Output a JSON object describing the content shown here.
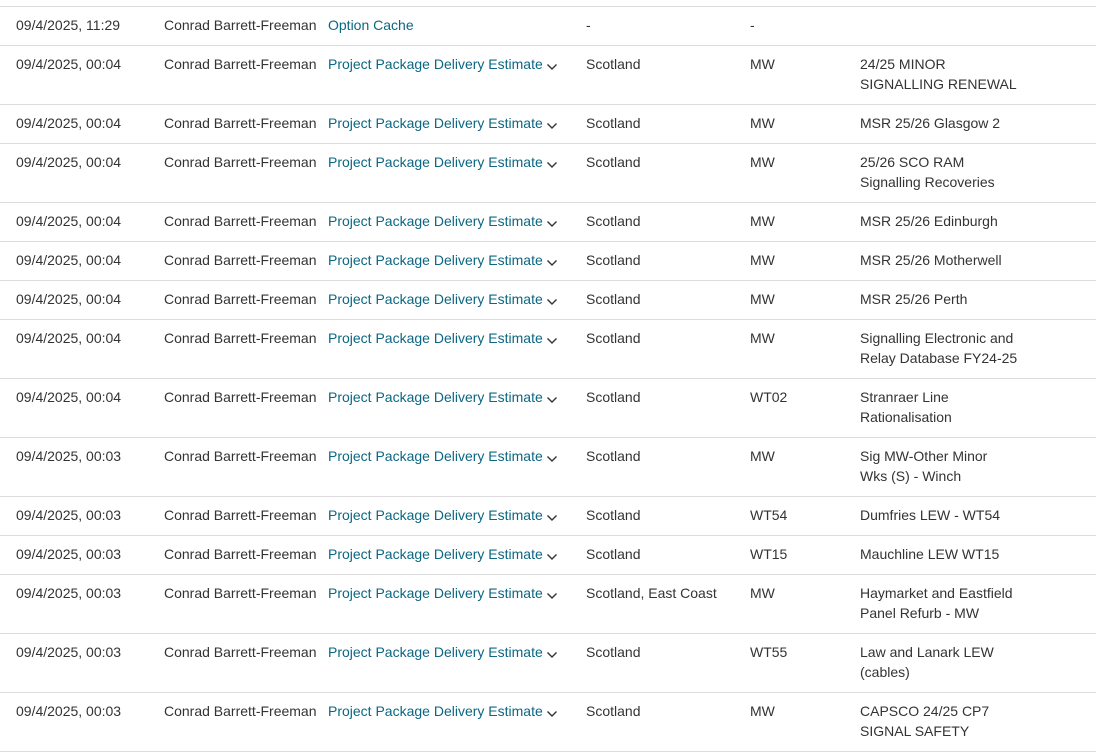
{
  "colors": {
    "link": "#0b6782",
    "text": "#333333",
    "border": "#dddddd"
  },
  "rows": [
    {
      "date": "09/4/2025, 11:29",
      "user": "Conrad Barrett-Freeman",
      "type": "Option Cache",
      "expandable": false,
      "region": "-",
      "code": "-",
      "project": ""
    },
    {
      "date": "09/4/2025, 00:04",
      "user": "Conrad Barrett-Freeman",
      "type": "Project Package Delivery Estimate",
      "expandable": true,
      "region": "Scotland",
      "code": "MW",
      "project": "24/25 MINOR SIGNALLING RENEWAL"
    },
    {
      "date": "09/4/2025, 00:04",
      "user": "Conrad Barrett-Freeman",
      "type": "Project Package Delivery Estimate",
      "expandable": true,
      "region": "Scotland",
      "code": "MW",
      "project": "MSR 25/26 Glasgow 2"
    },
    {
      "date": "09/4/2025, 00:04",
      "user": "Conrad Barrett-Freeman",
      "type": "Project Package Delivery Estimate",
      "expandable": true,
      "region": "Scotland",
      "code": "MW",
      "project": "25/26 SCO RAM Signalling Recoveries"
    },
    {
      "date": "09/4/2025, 00:04",
      "user": "Conrad Barrett-Freeman",
      "type": "Project Package Delivery Estimate",
      "expandable": true,
      "region": "Scotland",
      "code": "MW",
      "project": "MSR 25/26 Edinburgh"
    },
    {
      "date": "09/4/2025, 00:04",
      "user": "Conrad Barrett-Freeman",
      "type": "Project Package Delivery Estimate",
      "expandable": true,
      "region": "Scotland",
      "code": "MW",
      "project": "MSR 25/26 Motherwell"
    },
    {
      "date": "09/4/2025, 00:04",
      "user": "Conrad Barrett-Freeman",
      "type": "Project Package Delivery Estimate",
      "expandable": true,
      "region": "Scotland",
      "code": "MW",
      "project": "MSR 25/26 Perth"
    },
    {
      "date": "09/4/2025, 00:04",
      "user": "Conrad Barrett-Freeman",
      "type": "Project Package Delivery Estimate",
      "expandable": true,
      "region": "Scotland",
      "code": "MW",
      "project": "Signalling Electronic and Relay Database FY24-25"
    },
    {
      "date": "09/4/2025, 00:04",
      "user": "Conrad Barrett-Freeman",
      "type": "Project Package Delivery Estimate",
      "expandable": true,
      "region": "Scotland",
      "code": "WT02",
      "project": "Stranraer Line Rationalisation"
    },
    {
      "date": "09/4/2025, 00:03",
      "user": "Conrad Barrett-Freeman",
      "type": "Project Package Delivery Estimate",
      "expandable": true,
      "region": "Scotland",
      "code": "MW",
      "project": "Sig MW-Other Minor Wks (S) - Winch"
    },
    {
      "date": "09/4/2025, 00:03",
      "user": "Conrad Barrett-Freeman",
      "type": "Project Package Delivery Estimate",
      "expandable": true,
      "region": "Scotland",
      "code": "WT54",
      "project": "Dumfries LEW - WT54"
    },
    {
      "date": "09/4/2025, 00:03",
      "user": "Conrad Barrett-Freeman",
      "type": "Project Package Delivery Estimate",
      "expandable": true,
      "region": "Scotland",
      "code": "WT15",
      "project": "Mauchline LEW WT15"
    },
    {
      "date": "09/4/2025, 00:03",
      "user": "Conrad Barrett-Freeman",
      "type": "Project Package Delivery Estimate",
      "expandable": true,
      "region": "Scotland, East Coast",
      "code": "MW",
      "project": "Haymarket and Eastfield Panel Refurb - MW"
    },
    {
      "date": "09/4/2025, 00:03",
      "user": "Conrad Barrett-Freeman",
      "type": "Project Package Delivery Estimate",
      "expandable": true,
      "region": "Scotland",
      "code": "WT55",
      "project": "Law and Lanark LEW (cables)"
    },
    {
      "date": "09/4/2025, 00:03",
      "user": "Conrad Barrett-Freeman",
      "type": "Project Package Delivery Estimate",
      "expandable": true,
      "region": "Scotland",
      "code": "MW",
      "project": "CAPSCO 24/25 CP7 SIGNAL SAFETY"
    }
  ]
}
